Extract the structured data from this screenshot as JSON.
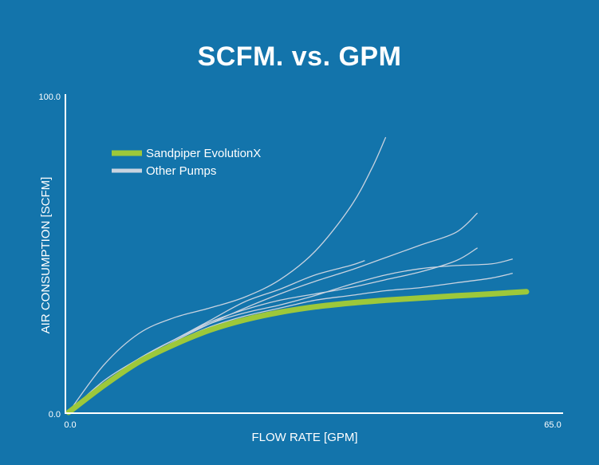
{
  "chart_data": {
    "type": "line",
    "title": "SCFM. vs. GPM",
    "xlabel": "FLOW RATE [GPM]",
    "ylabel": "AIR CONSUMPTION [SCFM]",
    "xlim": [
      0,
      65
    ],
    "ylim": [
      0,
      100
    ],
    "x_tick_labels": [
      "0.0",
      "65.0"
    ],
    "y_tick_labels": [
      "0.0",
      "100.0"
    ],
    "grid": false,
    "legend_position": "upper-left",
    "series": [
      {
        "name": "Sandpiper EvolutionX",
        "color": "#9dc83a",
        "highlight": true,
        "points": [
          [
            0,
            0
          ],
          [
            5,
            8.5
          ],
          [
            10,
            16
          ],
          [
            15,
            21.5
          ],
          [
            20,
            26
          ],
          [
            25,
            29.3
          ],
          [
            30,
            31.7
          ],
          [
            35,
            33.4
          ],
          [
            40,
            34.6
          ],
          [
            45,
            35.5
          ],
          [
            50,
            36.2
          ],
          [
            55,
            36.9
          ],
          [
            60,
            37.5
          ],
          [
            65,
            38.2
          ]
        ]
      },
      {
        "name": "Other Pumps",
        "color": "#c9d3e0",
        "highlight": false,
        "points": [
          [
            0,
            0
          ],
          [
            5,
            15
          ],
          [
            10,
            25
          ],
          [
            15,
            30
          ],
          [
            20,
            33
          ],
          [
            25,
            36.5
          ],
          [
            30,
            42
          ],
          [
            35,
            51
          ],
          [
            40,
            65
          ],
          [
            43,
            77
          ],
          [
            45,
            87
          ]
        ]
      },
      {
        "name": "Other Pumps",
        "color": "#c9d3e0",
        "highlight": false,
        "points": [
          [
            0,
            0
          ],
          [
            5,
            8
          ],
          [
            10,
            16
          ],
          [
            15,
            22.5
          ],
          [
            20,
            28
          ],
          [
            25,
            33
          ],
          [
            30,
            37.5
          ],
          [
            35,
            41.5
          ],
          [
            40,
            45
          ],
          [
            45,
            49
          ],
          [
            50,
            53
          ],
          [
            55,
            57
          ],
          [
            58,
            63
          ]
        ]
      },
      {
        "name": "Other Pumps",
        "color": "#c9d3e0",
        "highlight": false,
        "points": [
          [
            0,
            0
          ],
          [
            5,
            10
          ],
          [
            10,
            17
          ],
          [
            15,
            23
          ],
          [
            20,
            29
          ],
          [
            25,
            35
          ],
          [
            30,
            39
          ],
          [
            35,
            43.5
          ],
          [
            40,
            46.5
          ],
          [
            42,
            48
          ]
        ]
      },
      {
        "name": "Other Pumps",
        "color": "#c9d3e0",
        "highlight": false,
        "points": [
          [
            0,
            0
          ],
          [
            5,
            9
          ],
          [
            10,
            17
          ],
          [
            15,
            23
          ],
          [
            20,
            28.5
          ],
          [
            25,
            32.5
          ],
          [
            30,
            35.5
          ],
          [
            35,
            37.5
          ],
          [
            40,
            39.5
          ],
          [
            45,
            42
          ],
          [
            50,
            44.5
          ],
          [
            55,
            48
          ],
          [
            58,
            52
          ]
        ]
      },
      {
        "name": "Other Pumps",
        "color": "#c9d3e0",
        "highlight": false,
        "points": [
          [
            0,
            0
          ],
          [
            5,
            9
          ],
          [
            10,
            17
          ],
          [
            15,
            23
          ],
          [
            20,
            28
          ],
          [
            25,
            31.5
          ],
          [
            30,
            34
          ],
          [
            35,
            37
          ],
          [
            40,
            40.5
          ],
          [
            45,
            43.5
          ],
          [
            50,
            45.5
          ],
          [
            55,
            46.5
          ],
          [
            60,
            47
          ],
          [
            63,
            48.5
          ]
        ]
      },
      {
        "name": "Other Pumps",
        "color": "#c9d3e0",
        "highlight": false,
        "points": [
          [
            0,
            0
          ],
          [
            5,
            8.5
          ],
          [
            10,
            16
          ],
          [
            15,
            22
          ],
          [
            20,
            27
          ],
          [
            25,
            30.5
          ],
          [
            30,
            33
          ],
          [
            35,
            35.5
          ],
          [
            40,
            37
          ],
          [
            45,
            38.5
          ],
          [
            50,
            39.5
          ],
          [
            55,
            41
          ],
          [
            60,
            42.5
          ],
          [
            63,
            44
          ]
        ]
      }
    ],
    "legend": [
      {
        "label": "Sandpiper EvolutionX",
        "color": "#9dc83a"
      },
      {
        "label": "Other Pumps",
        "color": "#c9d3e0"
      }
    ]
  }
}
